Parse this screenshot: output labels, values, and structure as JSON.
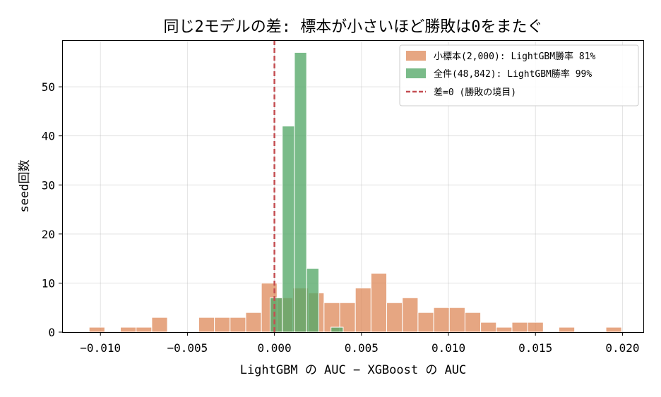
{
  "chart_data": {
    "type": "bar",
    "title": "同じ2モデルの差: 標本が小さいほど勝敗は0をまたぐ",
    "xlabel": "LightGBM の AUC − XGBoost の AUC",
    "ylabel": "seed回数",
    "xlim": [
      -0.0122,
      0.0212
    ],
    "ylim": [
      0,
      59.5
    ],
    "xticks": [
      -0.01,
      -0.005,
      0.0,
      0.005,
      0.01,
      0.015,
      0.02
    ],
    "xtick_labels": [
      "−0.010",
      "−0.005",
      "0.000",
      "0.005",
      "0.010",
      "0.015",
      "0.020"
    ],
    "yticks": [
      0,
      10,
      20,
      30,
      40,
      50
    ],
    "ytick_labels": [
      "0",
      "10",
      "20",
      "30",
      "40",
      "50"
    ],
    "grid": true,
    "legend_position": "top-right",
    "series": [
      {
        "name": "小標本(2,000): LightGBM勝率 81%",
        "color": "#dd8452",
        "opacity": 0.72,
        "bins": [
          {
            "x0": -0.01065,
            "x1": -0.00975,
            "count": 1
          },
          {
            "x0": -0.00885,
            "x1": -0.00795,
            "count": 1
          },
          {
            "x0": -0.00795,
            "x1": -0.00705,
            "count": 1
          },
          {
            "x0": -0.00705,
            "x1": -0.00615,
            "count": 3
          },
          {
            "x0": -0.00435,
            "x1": -0.00345,
            "count": 3
          },
          {
            "x0": -0.00345,
            "x1": -0.00255,
            "count": 3
          },
          {
            "x0": -0.00255,
            "x1": -0.00165,
            "count": 3
          },
          {
            "x0": -0.00165,
            "x1": -0.00075,
            "count": 4
          },
          {
            "x0": -0.00075,
            "x1": 0.00015,
            "count": 10
          },
          {
            "x0": 0.00015,
            "x1": 0.00105,
            "count": 7
          },
          {
            "x0": 0.00105,
            "x1": 0.00195,
            "count": 9
          },
          {
            "x0": 0.00195,
            "x1": 0.00285,
            "count": 8
          },
          {
            "x0": 0.00285,
            "x1": 0.00375,
            "count": 6
          },
          {
            "x0": 0.00375,
            "x1": 0.00465,
            "count": 6
          },
          {
            "x0": 0.00465,
            "x1": 0.00555,
            "count": 9
          },
          {
            "x0": 0.00555,
            "x1": 0.00645,
            "count": 12
          },
          {
            "x0": 0.00645,
            "x1": 0.00735,
            "count": 6
          },
          {
            "x0": 0.00735,
            "x1": 0.00825,
            "count": 7
          },
          {
            "x0": 0.00825,
            "x1": 0.00915,
            "count": 4
          },
          {
            "x0": 0.00915,
            "x1": 0.01005,
            "count": 5
          },
          {
            "x0": 0.01005,
            "x1": 0.01095,
            "count": 5
          },
          {
            "x0": 0.01095,
            "x1": 0.01185,
            "count": 4
          },
          {
            "x0": 0.01185,
            "x1": 0.01275,
            "count": 2
          },
          {
            "x0": 0.01275,
            "x1": 0.01365,
            "count": 1
          },
          {
            "x0": 0.01365,
            "x1": 0.01455,
            "count": 2
          },
          {
            "x0": 0.01455,
            "x1": 0.01545,
            "count": 2
          },
          {
            "x0": 0.01635,
            "x1": 0.01725,
            "count": 1
          },
          {
            "x0": 0.01905,
            "x1": 0.01995,
            "count": 1
          }
        ]
      },
      {
        "name": "全件(48,842): LightGBM勝率 99%",
        "color": "#55a868",
        "opacity": 0.78,
        "bins": [
          {
            "x0": -0.00025,
            "x1": 0.00045,
            "count": 7
          },
          {
            "x0": 0.00045,
            "x1": 0.00115,
            "count": 42
          },
          {
            "x0": 0.00115,
            "x1": 0.00185,
            "count": 57
          },
          {
            "x0": 0.00185,
            "x1": 0.00255,
            "count": 13
          },
          {
            "x0": 0.00255,
            "x1": 0.00325,
            "count": 0
          },
          {
            "x0": 0.00325,
            "x1": 0.00395,
            "count": 1
          }
        ]
      }
    ],
    "reference_line": {
      "name": "差=0 (勝敗の境目)",
      "x": 0.0,
      "color": "#c44e52",
      "style": "dashed"
    }
  }
}
